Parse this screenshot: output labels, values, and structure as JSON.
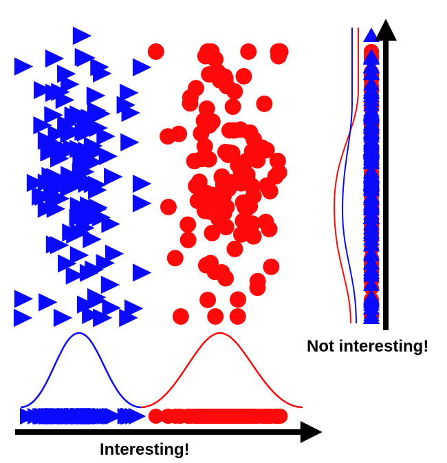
{
  "colors": {
    "class_a": "#0a0aff",
    "class_b": "#ff0a0a",
    "axis": "#000000"
  },
  "class_a": {
    "marker": "triangle-right",
    "color": "#0a0aff"
  },
  "class_b": {
    "marker": "circle",
    "color": "#ff0a0a"
  },
  "captions": {
    "x_projection": "Interesting!",
    "y_projection": "Not interesting!"
  }
}
